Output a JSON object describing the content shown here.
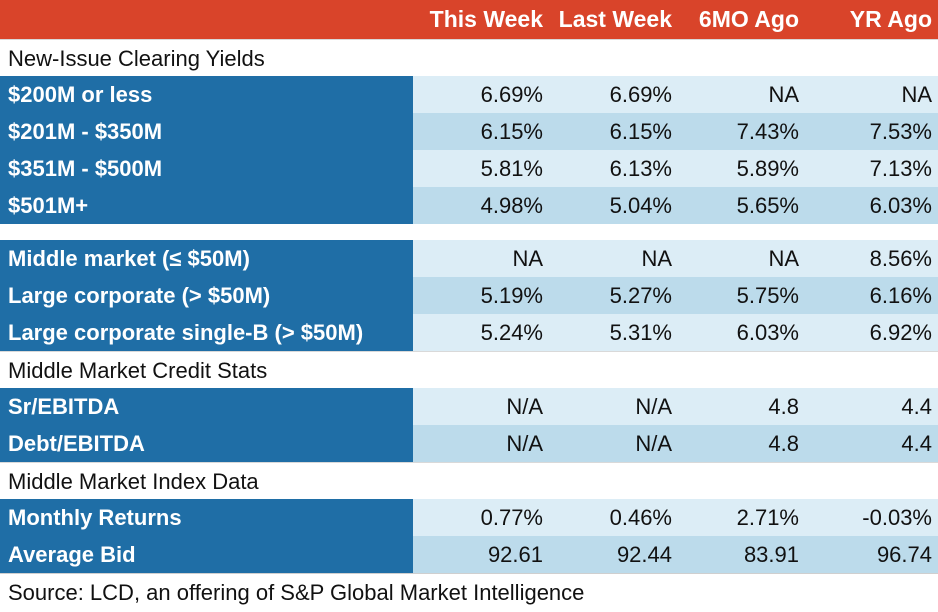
{
  "header": [
    "",
    "This Week",
    "Last Week",
    "6MO Ago",
    "YR Ago"
  ],
  "sections": {
    "new_issue": "New-Issue Clearing Yields",
    "mm_credit": "Middle Market Credit Stats",
    "mm_index": "Middle Market Index Data"
  },
  "rows": {
    "r1": [
      "$200M or less",
      "6.69%",
      "6.69%",
      "NA",
      "NA"
    ],
    "r2": [
      "$201M - $350M",
      "6.15%",
      "6.15%",
      "7.43%",
      "7.53%"
    ],
    "r3": [
      "$351M - $500M",
      "5.81%",
      "6.13%",
      "5.89%",
      "7.13%"
    ],
    "r4": [
      "$501M+",
      "4.98%",
      "5.04%",
      "5.65%",
      "6.03%"
    ],
    "r5": [
      "Middle market (≤ $50M)",
      "NA",
      "NA",
      "NA",
      "8.56%"
    ],
    "r6": [
      "Large corporate (> $50M)",
      "5.19%",
      "5.27%",
      "5.75%",
      "6.16%"
    ],
    "r7": [
      "Large corporate single-B (> $50M)",
      "5.24%",
      "5.31%",
      "6.03%",
      "6.92%"
    ],
    "r8": [
      "Sr/EBITDA",
      "N/A",
      "N/A",
      "4.8",
      "4.4"
    ],
    "r9": [
      "Debt/EBITDA",
      "N/A",
      "N/A",
      "4.8",
      "4.4"
    ],
    "r10": [
      "Monthly Returns",
      "0.77%",
      "0.46%",
      "2.71%",
      "-0.03%"
    ],
    "r11": [
      "Average Bid",
      "92.61",
      "92.44",
      "83.91",
      "96.74"
    ]
  },
  "source": "Source: LCD, an offering of S&P Global Market Intelligence",
  "colors": {
    "header": "#d9442a",
    "label": "#1f6ea6",
    "band_light": "#dcedf6",
    "band_dark": "#bcdbeb"
  }
}
